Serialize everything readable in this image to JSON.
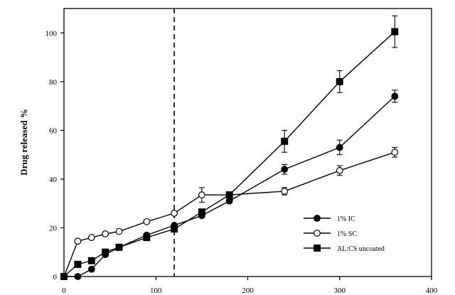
{
  "chart_data": {
    "type": "scatter",
    "title": "",
    "xlabel": "",
    "ylabel": "Drug released %",
    "xlim": [
      0,
      400
    ],
    "ylim": [
      0,
      110
    ],
    "xticks": [
      0,
      100,
      200,
      300,
      400
    ],
    "yticks": [
      0,
      20,
      40,
      60,
      80,
      100
    ],
    "vline_x": 120,
    "legend_position": "bottom-right",
    "series": [
      {
        "name": "1% IC",
        "marker": "filled-circle",
        "x": [
          0,
          15,
          30,
          45,
          60,
          90,
          120,
          150,
          180,
          240,
          300,
          360
        ],
        "y": [
          0,
          0,
          3,
          9,
          12,
          17,
          21,
          25,
          31,
          44,
          53,
          74
        ],
        "err": [
          0,
          0,
          0,
          0,
          0,
          0,
          0,
          0,
          0,
          2,
          3,
          2.5
        ]
      },
      {
        "name": "1% SC",
        "marker": "open-circle",
        "x": [
          0,
          15,
          30,
          45,
          60,
          90,
          120,
          150,
          180,
          240,
          300,
          360
        ],
        "y": [
          0,
          14.5,
          16,
          17.5,
          18.5,
          22.5,
          26,
          33.5,
          33.5,
          35,
          43.5,
          51
        ],
        "err": [
          0,
          0,
          0,
          0,
          0,
          0,
          0,
          3,
          0,
          1.5,
          2,
          2
        ]
      },
      {
        "name": "AL:CS uncoated",
        "marker": "filled-square",
        "x": [
          0,
          15,
          30,
          45,
          60,
          90,
          120,
          150,
          180,
          240,
          300,
          360
        ],
        "y": [
          0,
          5,
          6.5,
          10,
          12,
          16,
          19.5,
          26.5,
          33.5,
          55.5,
          80,
          100.5
        ],
        "err": [
          0,
          0,
          0,
          0,
          0,
          0,
          0,
          0,
          0,
          4.5,
          4.5,
          6.5
        ]
      }
    ]
  }
}
